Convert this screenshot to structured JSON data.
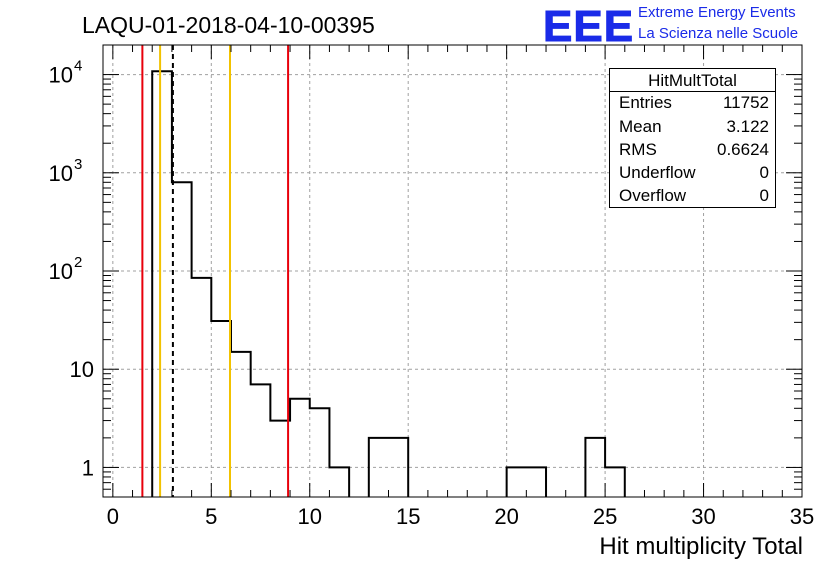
{
  "title": "LAQU-01-2018-04-10-00395",
  "logo": {
    "mark": "EEE",
    "line1": "Extreme Energy Events",
    "line2": "La Scienza nelle Scuole",
    "color": "#1a2be8"
  },
  "stats": {
    "title": "HitMultTotal",
    "rows": [
      {
        "label": "Entries",
        "value": "11752"
      },
      {
        "label": "Mean",
        "value": "3.122"
      },
      {
        "label": "RMS",
        "value": "0.6624"
      },
      {
        "label": "Underflow",
        "value": "0"
      },
      {
        "label": "Overflow",
        "value": "0"
      }
    ]
  },
  "chart_data": {
    "type": "bar",
    "histogram": "HitMultTotal",
    "title": "LAQU-01-2018-04-10-00395",
    "xlabel": "Hit multiplicity Total",
    "ylabel": "",
    "xlim": [
      -0.5,
      35
    ],
    "ylim_log": [
      0.5,
      20000
    ],
    "log_y": true,
    "grid": true,
    "bin_width": 1,
    "bins": [
      {
        "x": 2.5,
        "value": 10800
      },
      {
        "x": 3.5,
        "value": 800
      },
      {
        "x": 4.5,
        "value": 85
      },
      {
        "x": 5.5,
        "value": 31
      },
      {
        "x": 6.5,
        "value": 15
      },
      {
        "x": 7.5,
        "value": 7
      },
      {
        "x": 8.5,
        "value": 3
      },
      {
        "x": 9.5,
        "value": 5
      },
      {
        "x": 10.5,
        "value": 4
      },
      {
        "x": 11.5,
        "value": 1
      },
      {
        "x": 13.5,
        "value": 2
      },
      {
        "x": 14.5,
        "value": 2
      },
      {
        "x": 20.5,
        "value": 1
      },
      {
        "x": 21.5,
        "value": 1
      },
      {
        "x": 24.5,
        "value": 2
      },
      {
        "x": 25.5,
        "value": 1
      }
    ],
    "vlines": [
      {
        "x": 1.5,
        "color": "#e8000b",
        "style": "solid"
      },
      {
        "x": 8.9,
        "color": "#e8000b",
        "style": "solid"
      },
      {
        "x": 2.4,
        "color": "#f2c200",
        "style": "solid"
      },
      {
        "x": 5.95,
        "color": "#f2c200",
        "style": "solid"
      },
      {
        "x": 3.05,
        "color": "#000000",
        "style": "dashed"
      }
    ],
    "x_ticks": [
      0,
      5,
      10,
      15,
      20,
      25,
      30,
      35
    ],
    "x_tick_labels": [
      "0",
      "5",
      "10",
      "15",
      "20",
      "25",
      "30",
      "35"
    ],
    "y_ticks": [
      {
        "value": 1,
        "base": "1",
        "exp": ""
      },
      {
        "value": 10,
        "base": "10",
        "exp": ""
      },
      {
        "value": 100,
        "base": "10",
        "exp": "2"
      },
      {
        "value": 1000,
        "base": "10",
        "exp": "3"
      },
      {
        "value": 10000,
        "base": "10",
        "exp": "4"
      }
    ]
  }
}
